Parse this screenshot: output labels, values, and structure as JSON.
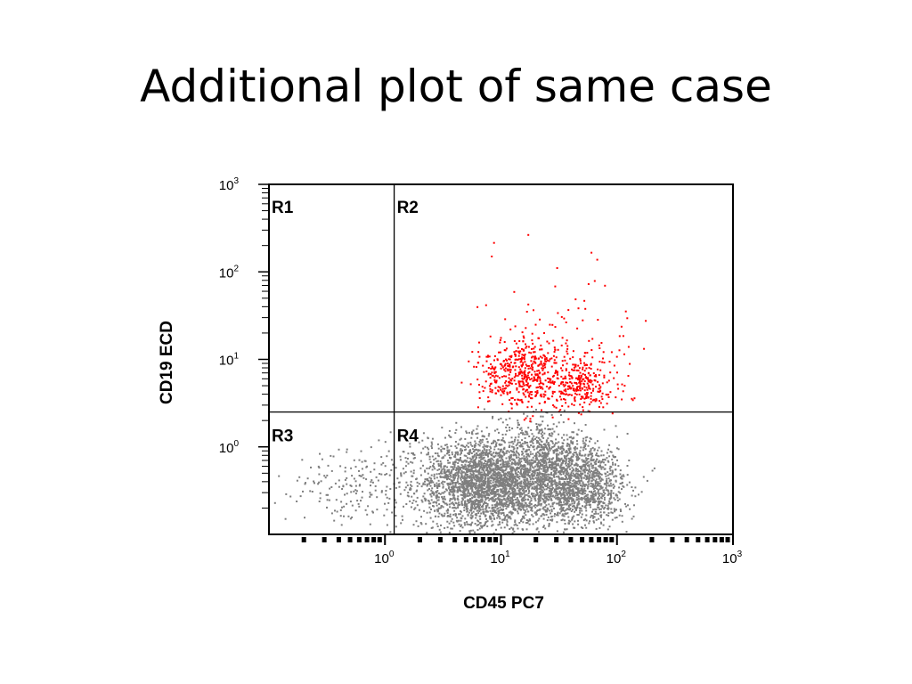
{
  "slide": {
    "title": "Additional plot of same case"
  },
  "chart_data": {
    "type": "scatter",
    "title": "Additional plot of same case",
    "xlabel": "CD45 PC7",
    "ylabel": "CD19 ECD",
    "xscale": "log",
    "yscale": "log",
    "xlim": [
      0.1,
      1000
    ],
    "ylim": [
      0.1,
      1000
    ],
    "x_ticks": [
      {
        "base": "10",
        "exp": "0",
        "value": 1
      },
      {
        "base": "10",
        "exp": "1",
        "value": 10
      },
      {
        "base": "10",
        "exp": "2",
        "value": 100
      },
      {
        "base": "10",
        "exp": "3",
        "value": 1000
      }
    ],
    "y_ticks": [
      {
        "base": "10",
        "exp": "0",
        "value": 1
      },
      {
        "base": "10",
        "exp": "1",
        "value": 10
      },
      {
        "base": "10",
        "exp": "2",
        "value": 100
      },
      {
        "base": "10",
        "exp": "3",
        "value": 1000
      }
    ],
    "gates": {
      "x": 1.2,
      "y": 2.5
    },
    "regions": [
      {
        "label": "R1",
        "position": "top-left"
      },
      {
        "label": "R2",
        "position": "top-right"
      },
      {
        "label": "R3",
        "position": "bottom-left"
      },
      {
        "label": "R4",
        "position": "bottom-right"
      }
    ],
    "series": [
      {
        "color": "#7f7f7f",
        "clusters": [
          {
            "x": 8,
            "y": 0.4,
            "sx": 2.2,
            "sy": 1.9,
            "n": 3000
          },
          {
            "x": 45,
            "y": 0.35,
            "sx": 1.7,
            "sy": 1.8,
            "n": 1200
          },
          {
            "x": 25,
            "y": 0.8,
            "sx": 1.7,
            "sy": 1.7,
            "n": 500
          },
          {
            "x": 0.6,
            "y": 0.4,
            "sx": 2.6,
            "sy": 1.9,
            "n": 220
          }
        ]
      },
      {
        "color": "#ff0000",
        "clusters": [
          {
            "x": 15,
            "y": 7,
            "sx": 1.6,
            "sy": 1.6,
            "n": 450
          },
          {
            "x": 50,
            "y": 5.5,
            "sx": 1.5,
            "sy": 1.5,
            "n": 300
          },
          {
            "x": 30,
            "y": 15,
            "sx": 2.6,
            "sy": 3,
            "n": 110
          }
        ]
      }
    ],
    "grid": false,
    "legend": "none"
  }
}
